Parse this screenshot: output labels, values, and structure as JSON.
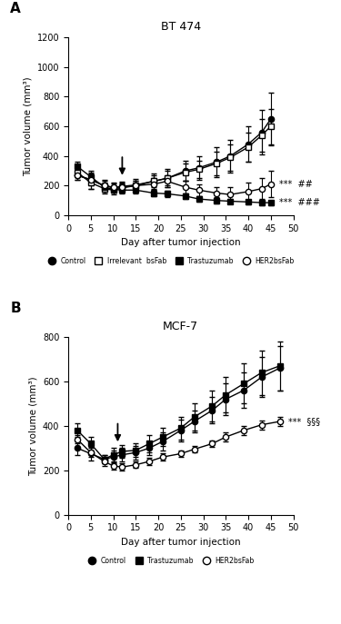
{
  "chart_data": [
    {
      "type": "line",
      "panel": "A",
      "title": "BT 474",
      "x_label": "Day after tumor injection",
      "y_label": "Tumor volume (mm³)",
      "xlim": [
        0,
        50
      ],
      "xticks": [
        0,
        5,
        10,
        15,
        20,
        25,
        30,
        35,
        40,
        45,
        50
      ],
      "ylim": [
        0,
        1200
      ],
      "yticks": [
        0,
        200,
        400,
        600,
        800,
        1000,
        1200
      ],
      "arrow_x": 12,
      "legend": "upper center",
      "series": [
        {
          "name": "Control",
          "color": "#000000",
          "marker": "filled_circle",
          "x": [
            2,
            5,
            8,
            10,
            12,
            15,
            19,
            22,
            26,
            29,
            33,
            36,
            40,
            43,
            45
          ],
          "values": [
            270,
            240,
            200,
            185,
            195,
            205,
            230,
            250,
            300,
            320,
            360,
            400,
            480,
            560,
            650
          ],
          "errors": [
            30,
            60,
            40,
            30,
            30,
            40,
            50,
            60,
            70,
            80,
            100,
            110,
            120,
            150,
            180
          ]
        },
        {
          "name": "Irrelevant  bsFab",
          "color": "#000000",
          "marker": "open_square",
          "x": [
            2,
            5,
            8,
            10,
            12,
            15,
            19,
            22,
            26,
            29,
            33,
            36,
            40,
            43,
            45
          ],
          "values": [
            290,
            220,
            180,
            170,
            185,
            200,
            230,
            250,
            290,
            310,
            350,
            390,
            460,
            540,
            600
          ],
          "errors": [
            30,
            40,
            30,
            30,
            30,
            30,
            40,
            50,
            60,
            60,
            80,
            90,
            100,
            110,
            120
          ]
        },
        {
          "name": "Trastuzumab",
          "color": "#000000",
          "marker": "filled_square",
          "x": [
            2,
            5,
            8,
            10,
            12,
            15,
            19,
            22,
            26,
            29,
            33,
            36,
            40,
            43,
            45
          ],
          "values": [
            330,
            260,
            190,
            175,
            170,
            170,
            150,
            145,
            130,
            110,
            100,
            95,
            90,
            85,
            85
          ],
          "errors": [
            30,
            30,
            30,
            20,
            20,
            20,
            20,
            20,
            20,
            20,
            20,
            15,
            15,
            15,
            15
          ],
          "annotation": "***  ###"
        },
        {
          "name": "HER2bsFab",
          "color": "#000000",
          "marker": "open_circle",
          "x": [
            2,
            5,
            8,
            10,
            12,
            15,
            19,
            22,
            26,
            29,
            33,
            36,
            40,
            43,
            45
          ],
          "values": [
            270,
            240,
            200,
            190,
            190,
            200,
            210,
            230,
            190,
            170,
            150,
            140,
            160,
            180,
            210
          ],
          "errors": [
            30,
            40,
            30,
            30,
            30,
            30,
            40,
            40,
            40,
            40,
            40,
            50,
            60,
            70,
            90
          ],
          "annotation": "***  ##"
        }
      ]
    },
    {
      "type": "line",
      "panel": "B",
      "title": "MCF-7",
      "x_label": "Day after tumor injection",
      "y_label": "Tumor volume (mm³)",
      "xlim": [
        0,
        50
      ],
      "xticks": [
        0,
        5,
        10,
        15,
        20,
        25,
        30,
        35,
        40,
        45,
        50
      ],
      "ylim": [
        0,
        800
      ],
      "yticks": [
        0,
        200,
        400,
        600,
        800
      ],
      "arrow_x": 11,
      "legend": "upper center",
      "series": [
        {
          "name": "Control",
          "color": "#000000",
          "marker": "filled_circle",
          "x": [
            2,
            5,
            8,
            10,
            12,
            15,
            18,
            21,
            25,
            28,
            32,
            35,
            39,
            43,
            47
          ],
          "values": [
            300,
            275,
            250,
            260,
            270,
            280,
            300,
            330,
            380,
            420,
            470,
            520,
            560,
            620,
            660
          ],
          "errors": [
            30,
            30,
            20,
            30,
            30,
            30,
            30,
            40,
            50,
            50,
            60,
            70,
            80,
            90,
            100
          ]
        },
        {
          "name": "Trastuzumab",
          "color": "#000000",
          "marker": "filled_square",
          "x": [
            2,
            5,
            8,
            10,
            12,
            15,
            18,
            21,
            25,
            28,
            32,
            35,
            39,
            43,
            47
          ],
          "values": [
            380,
            320,
            250,
            270,
            285,
            290,
            320,
            350,
            390,
            440,
            490,
            540,
            590,
            640,
            670
          ],
          "errors": [
            30,
            30,
            20,
            30,
            30,
            30,
            40,
            40,
            50,
            60,
            70,
            80,
            90,
            100,
            110
          ]
        },
        {
          "name": "HER2bsFab",
          "color": "#000000",
          "marker": "open_circle",
          "x": [
            2,
            5,
            8,
            10,
            12,
            15,
            18,
            21,
            25,
            28,
            32,
            35,
            39,
            43,
            47
          ],
          "values": [
            340,
            280,
            240,
            220,
            215,
            225,
            240,
            260,
            275,
            295,
            320,
            350,
            380,
            405,
            420
          ],
          "errors": [
            20,
            20,
            20,
            15,
            15,
            15,
            15,
            15,
            15,
            15,
            15,
            20,
            20,
            20,
            20
          ],
          "annotation": "***  §§§"
        }
      ]
    }
  ]
}
